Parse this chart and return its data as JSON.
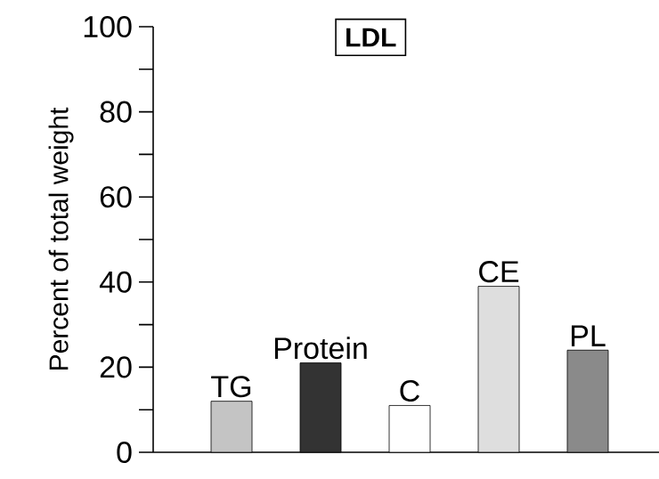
{
  "chart_data": {
    "type": "bar",
    "title": "LDL",
    "ylabel": "Percent of total weight",
    "categories": [
      "TG",
      "Protein",
      "C",
      "CE",
      "PL"
    ],
    "values": [
      12,
      21,
      11,
      39,
      24
    ],
    "colors": [
      "#c4c4c4",
      "#333333",
      "#ffffff",
      "#dedede",
      "#8a8a8a"
    ],
    "ylim": [
      0,
      100
    ],
    "yticks": [
      0,
      {
        "value": 10,
        "label": null
      },
      20,
      {
        "value": 30,
        "label": null
      },
      40,
      {
        "value": 50,
        "label": null
      },
      60,
      {
        "value": 70,
        "label": null
      },
      80,
      {
        "value": 90,
        "label": null
      },
      100
    ]
  }
}
